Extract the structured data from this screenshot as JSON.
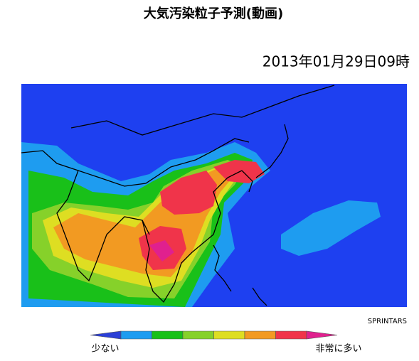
{
  "title": "大気汚染粒子予測(動画)",
  "timestamp": "2013年01月29日09時",
  "credit": "SPRINTARS",
  "legend": {
    "low_label": "少ない",
    "high_label": "非常に多い",
    "colors": [
      "#2b3fd6",
      "#1e9cf0",
      "#19c019",
      "#86d12a",
      "#dede22",
      "#f29a22",
      "#f0344a",
      "#e0208e"
    ]
  }
}
